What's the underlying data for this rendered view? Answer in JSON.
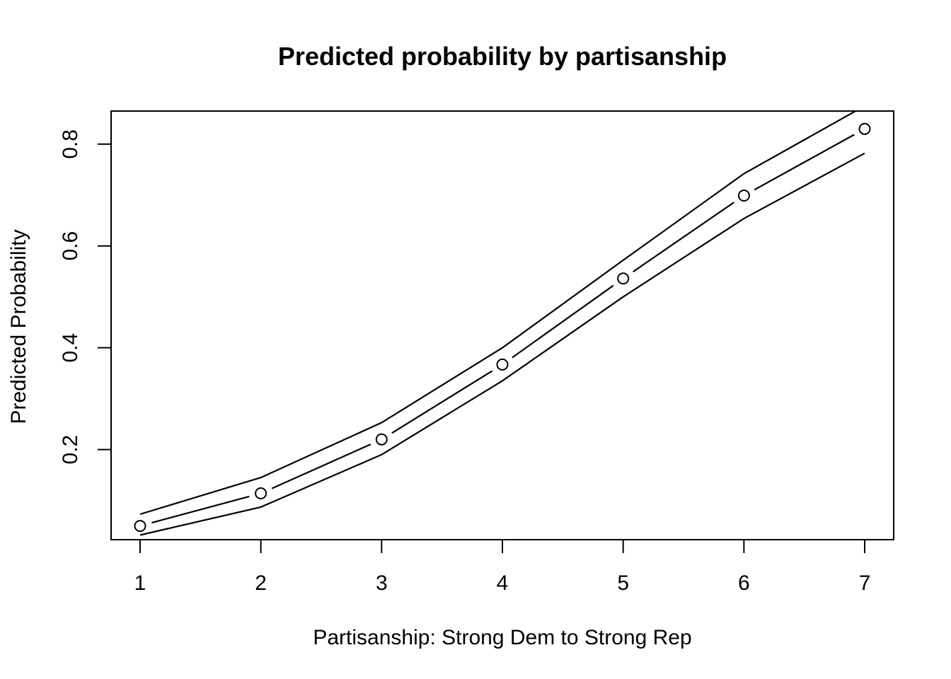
{
  "chart_data": {
    "type": "line",
    "title": "Predicted probability by partisanship",
    "xlabel": "Partisanship: Strong Dem to Strong Rep",
    "ylabel": "Predicted Probability",
    "x": [
      1,
      2,
      3,
      4,
      5,
      6,
      7
    ],
    "x_ticks": [
      "1",
      "2",
      "3",
      "4",
      "5",
      "6",
      "7"
    ],
    "y_ticks": [
      "0.2",
      "0.4",
      "0.6",
      "0.8"
    ],
    "y_tick_values": [
      0.2,
      0.4,
      0.6,
      0.8
    ],
    "xlim": [
      0.76,
      7.24
    ],
    "ylim": [
      0.023,
      0.865
    ],
    "grid": false,
    "series": [
      {
        "role": "upper",
        "style": "line",
        "values": [
          0.073,
          0.145,
          0.253,
          0.4,
          0.572,
          0.742,
          0.875
        ]
      },
      {
        "role": "estimate",
        "style": "broken-line-with-open-points",
        "values": [
          0.05,
          0.114,
          0.22,
          0.367,
          0.536,
          0.699,
          0.83
        ]
      },
      {
        "role": "lower",
        "style": "line",
        "values": [
          0.032,
          0.087,
          0.19,
          0.335,
          0.5,
          0.654,
          0.782
        ]
      }
    ]
  }
}
